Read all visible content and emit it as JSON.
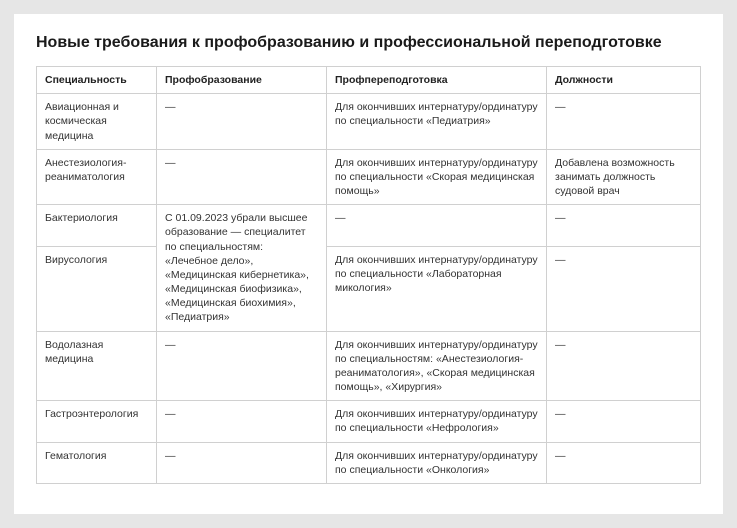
{
  "title": "Новые требования к профобразованию и профессиональной переподготовке",
  "table": {
    "headers": {
      "c1": "Специальность",
      "c2": "Профобразование",
      "c3": "Профпереподготовка",
      "c4": "Должности"
    },
    "rows": {
      "r0": {
        "c1": "Авиационная и космическая медицина",
        "c2": "—",
        "c3": "Для окончивших интернатуру/ординатуру по специальности «Педиатрия»",
        "c4": "—"
      },
      "r1": {
        "c1": "Анестезиология-реаниматология",
        "c2": "—",
        "c3": "Для окончивших интернатуру/ординатуру по специальности «Скорая медицинская помощь»",
        "c4": "Добавлена возможность занимать должность судовой врач"
      },
      "r2": {
        "c1": "Бактериология",
        "c3": "—",
        "c4": "—"
      },
      "merged": {
        "r2r3c2": "С 01.09.2023 убрали высшее образование — специалитет по специальностям: «Лечебное дело», «Медицинская кибернетика», «Медицинская биофизика», «Медицинская биохимия», «Педиатрия»"
      },
      "r3": {
        "c1": "Вирусология",
        "c3": "Для окончивших интернатуру/ординатуру по специальности «Лабораторная микология»",
        "c4": "—"
      },
      "r4": {
        "c1": "Водолазная медицина",
        "c2": "—",
        "c3": "Для окончивших интернатуру/ординатуру по специальностям: «Анестезиология-реаниматология», «Скорая медицинская помощь», «Хирургия»",
        "c4": "—"
      },
      "r5": {
        "c1": "Гастроэнтерология",
        "c2": "—",
        "c3": "Для окончивших интернатуру/ординатуру по специальности «Нефрология»",
        "c4": "—"
      },
      "r6": {
        "c1": "Гематология",
        "c2": "—",
        "c3": "Для окончивших интернатуру/ординатуру по специальности «Онкология»",
        "c4": "—"
      }
    }
  }
}
